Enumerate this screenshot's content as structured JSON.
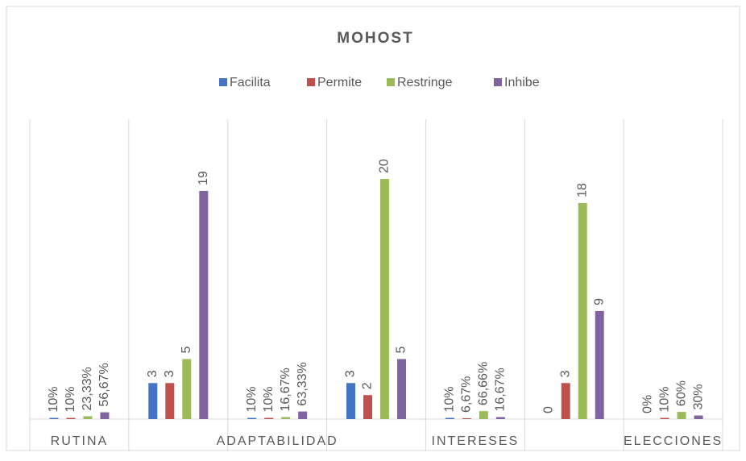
{
  "chart_data": {
    "type": "bar",
    "title": "MOHOST",
    "categories": [
      "RUTINA",
      null,
      "ADAPTABILIDAD",
      null,
      "INTERESES",
      null,
      "ELECCIONES"
    ],
    "series": [
      {
        "name": "Facilita",
        "color": "#4472c4",
        "values": [
          0.1,
          3,
          0.1,
          3,
          0.1,
          0,
          0
        ],
        "value_labels": [
          "10%",
          "3",
          "10%",
          "3",
          "10%",
          "0",
          "0%"
        ]
      },
      {
        "name": "Permite",
        "color": "#c0504d",
        "values": [
          0.1,
          3,
          0.1,
          2,
          0.0667,
          3,
          0.1
        ],
        "value_labels": [
          "10%",
          "3",
          "10%",
          "2",
          "6,67%",
          "3",
          "10%"
        ]
      },
      {
        "name": "Restringe",
        "color": "#9bbb59",
        "values": [
          0.2333,
          5,
          0.1667,
          20,
          0.6666,
          18,
          0.6
        ],
        "value_labels": [
          "23,33%",
          "5",
          "16,67%",
          "20",
          "66,66%",
          "18",
          "60%"
        ]
      },
      {
        "name": "Inhibe",
        "color": "#8064a2",
        "values": [
          0.5667,
          19,
          0.6333,
          5,
          0.1667,
          9,
          0.3
        ],
        "value_labels": [
          "56,67%",
          "19",
          "63,33%",
          "5",
          "16,67%",
          "9",
          "30%"
        ]
      }
    ],
    "ylim": [
      0,
      24.5
    ],
    "grid": true,
    "legend": "top"
  }
}
